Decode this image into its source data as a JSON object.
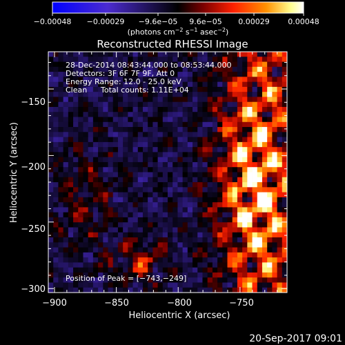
{
  "chart_data": {
    "type": "heatmap",
    "title": "Reconstructed RHESSI Image",
    "xlabel": "Heliocentric X (arcsec)",
    "ylabel": "Heliocentric Y (arcsec)",
    "xlim": [
      -905,
      -712
    ],
    "ylim": [
      -303,
      -122
    ],
    "x_ticks": [
      -900,
      -850,
      -800,
      -750
    ],
    "y_ticks": [
      -300,
      -250,
      -200,
      -150
    ],
    "x_tick_labels": [
      "−900",
      "−850",
      "−800",
      "−750"
    ],
    "y_tick_labels": [
      "−300",
      "−250",
      "−200",
      "−150"
    ],
    "colorbar": {
      "range": [
        -0.00048,
        0.00048
      ],
      "tick_labels": [
        "−0.00048",
        "−0.00029",
        "−9.6e−05",
        "9.6e−05",
        "0.00029",
        "0.00048"
      ],
      "unit_main": "(photons cm",
      "unit_exp1": "−2",
      "unit_mid": " s",
      "unit_exp2": "−1",
      "unit_tail": " asec",
      "unit_exp3": "−2",
      "unit_close": ")",
      "colormap": [
        "#0000ff",
        "#4b2bd0",
        "#000000",
        "#7a0000",
        "#ff2000",
        "#ff9000",
        "#ffff90",
        "#ffffff"
      ]
    },
    "peak_position": [
      -743,
      -249
    ],
    "peak_label": "Position of Peak = ",
    "peak_value": "[−743,−249]",
    "grid": false
  },
  "info": {
    "line1": "28-Dec-2014 08:43:44.000 to 08:53:44.000",
    "line2": "Detectors: 3F 6F 7F 9F, Att 0",
    "line3": "Energy Range: 12.0 - 25.0 keV",
    "line4a": "Clean",
    "line4b": "Total counts: 1.11E+04"
  },
  "footer": {
    "timestamp": "20-Sep-2017 09:01"
  }
}
